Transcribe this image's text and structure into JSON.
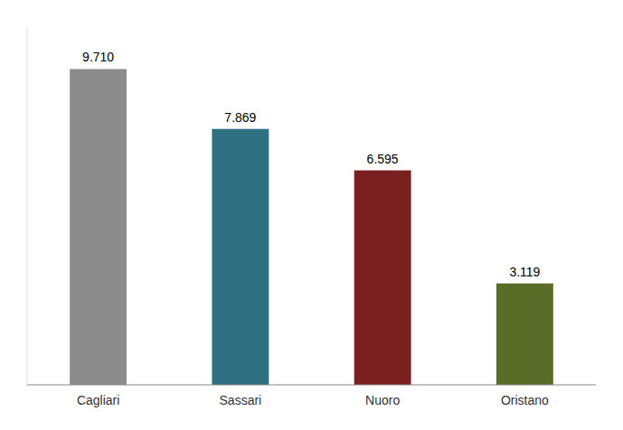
{
  "chart_data": {
    "type": "bar",
    "categories": [
      "Cagliari",
      "Sassari",
      "Nuoro",
      "Oristano"
    ],
    "values": [
      9710,
      7869,
      6595,
      3119
    ],
    "value_labels": [
      "9.710",
      "7.869",
      "6.595",
      "3.119"
    ],
    "colors": [
      "#8C8C8C",
      "#2E7080",
      "#7B2020",
      "#5B6B28"
    ],
    "ylim": [
      0,
      11000
    ],
    "data_labels": true,
    "tick_labels": "x",
    "grid": false
  }
}
